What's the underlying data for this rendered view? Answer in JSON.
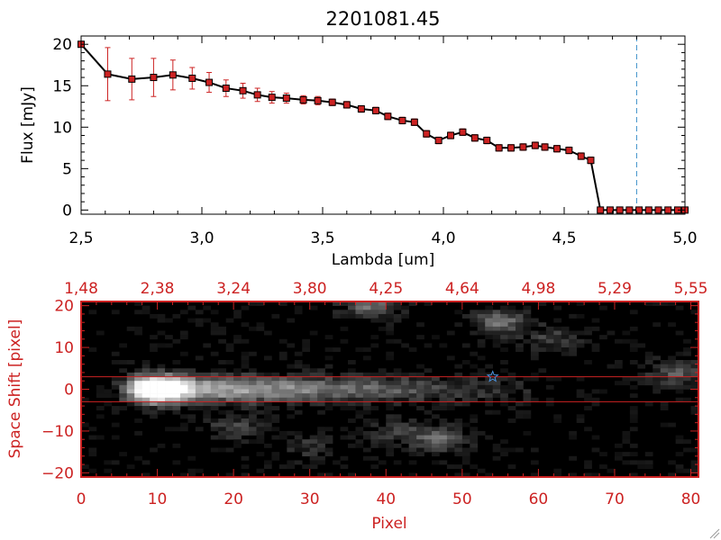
{
  "colors": {
    "axis_top": "#000000",
    "axis_bottom": "#cc2222",
    "errorbar": "#cc2222",
    "marker_fill": "#cc2222",
    "line": "#000000",
    "vline": "#3b8fc9",
    "star": "#4a90d9",
    "band": "#cc2222"
  },
  "chart_data": [
    {
      "type": "line",
      "title": "2201081.45",
      "xlabel": "Lambda [um]",
      "ylabel": "Flux [mJy]",
      "xlim": [
        2.5,
        5.0
      ],
      "ylim": [
        -0.5,
        21
      ],
      "xticks": [
        2.5,
        3.0,
        3.5,
        4.0,
        4.5,
        5.0
      ],
      "xtick_labels": [
        "2,5",
        "3,0",
        "3,5",
        "4,0",
        "4,5",
        "5,0"
      ],
      "yticks": [
        0,
        5,
        10,
        15,
        20
      ],
      "ytick_labels": [
        "0",
        "5",
        "10",
        "15",
        "20"
      ],
      "vline_x": 4.8,
      "series": [
        {
          "x": [
            2.5,
            2.61,
            2.71,
            2.8,
            2.88,
            2.96,
            3.03,
            3.1,
            3.17,
            3.23,
            3.29,
            3.35,
            3.42,
            3.48,
            3.54,
            3.6,
            3.66,
            3.72,
            3.77,
            3.83,
            3.88,
            3.93,
            3.98,
            4.03,
            4.08,
            4.13,
            4.18,
            4.23,
            4.28,
            4.33,
            4.38,
            4.42,
            4.47,
            4.52,
            4.57,
            4.61,
            4.65,
            4.69,
            4.73,
            4.77,
            4.81,
            4.85,
            4.89,
            4.93,
            4.97,
            5.0
          ],
          "y": [
            20.0,
            16.4,
            15.8,
            16.0,
            16.3,
            15.9,
            15.4,
            14.7,
            14.4,
            13.9,
            13.6,
            13.5,
            13.3,
            13.2,
            13.0,
            12.7,
            12.2,
            12.0,
            11.3,
            10.8,
            10.6,
            9.2,
            8.4,
            9.0,
            9.4,
            8.7,
            8.4,
            7.5,
            7.5,
            7.6,
            7.8,
            7.6,
            7.4,
            7.2,
            6.5,
            6.0,
            0.0,
            0.0,
            0.0,
            0.0,
            0.0,
            0.0,
            0.0,
            0.0,
            0.0,
            0.0
          ],
          "err": [
            0,
            3.2,
            2.5,
            2.3,
            1.8,
            1.3,
            1.2,
            1.0,
            0.9,
            0.8,
            0.7,
            0.6,
            0.5,
            0.5,
            0.4,
            0.4,
            0.4,
            0.4,
            0.4,
            0.4,
            0.4,
            0.4,
            0.4,
            0.4,
            0.4,
            0.4,
            0.4,
            0.4,
            0.4,
            0.4,
            0.4,
            0.4,
            0.4,
            0.4,
            0.4,
            0.4,
            0,
            0,
            0,
            0,
            0,
            0,
            0,
            0,
            0,
            0
          ]
        }
      ]
    },
    {
      "type": "heatmap",
      "xlabel": "Pixel",
      "ylabel": "Space Shift [pixel]",
      "xlim": [
        0,
        81
      ],
      "ylim": [
        -21,
        21
      ],
      "xticks": [
        0,
        10,
        20,
        30,
        40,
        50,
        60,
        70,
        80
      ],
      "xtick_labels": [
        "0",
        "10",
        "20",
        "30",
        "40",
        "50",
        "60",
        "70",
        "80"
      ],
      "yticks": [
        -20,
        -10,
        0,
        10,
        20
      ],
      "ytick_labels": [
        "−20",
        "−10",
        "0",
        "10",
        "20"
      ],
      "top_axis_labels": [
        "1,48",
        "2,38",
        "3,24",
        "3,80",
        "4,25",
        "4,64",
        "4,98",
        "5,29",
        "5,55"
      ],
      "band_y": [
        3,
        -3
      ],
      "star_marker": {
        "x": 54,
        "y": 3
      },
      "trace": {
        "x_start": 6,
        "x_end": 56,
        "y_center": 0
      },
      "blobs": [
        {
          "x": 10,
          "y": 0,
          "strength": 1.0
        },
        {
          "x": 38,
          "y": 20,
          "strength": 0.45
        },
        {
          "x": 55,
          "y": 16,
          "strength": 0.45
        },
        {
          "x": 78,
          "y": 4,
          "strength": 0.35
        },
        {
          "x": 47,
          "y": -12,
          "strength": 0.4
        },
        {
          "x": 41,
          "y": -10,
          "strength": 0.25
        },
        {
          "x": 20,
          "y": -9,
          "strength": 0.25
        },
        {
          "x": 30,
          "y": -14,
          "strength": 0.2
        },
        {
          "x": 62,
          "y": 12,
          "strength": 0.25
        }
      ]
    }
  ]
}
